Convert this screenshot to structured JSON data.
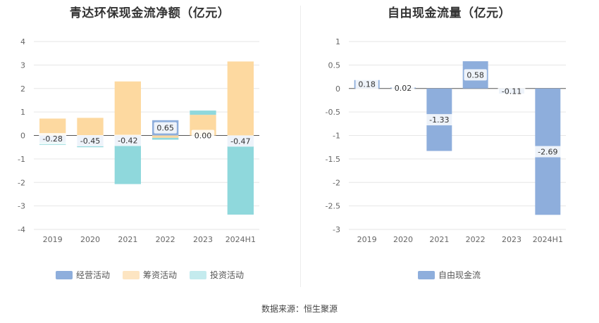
{
  "chart_data": [
    {
      "type": "bar",
      "stacked": true,
      "title": "青达环保现金流净额（亿元）",
      "categories": [
        "2019",
        "2020",
        "2021",
        "2022",
        "2023",
        "2024H1"
      ],
      "ylim": [
        -4,
        4
      ],
      "yticks": [
        4,
        3,
        2,
        1,
        0,
        -1,
        -2,
        -3,
        -4
      ],
      "grid": true,
      "legend_position": "bottom",
      "series": [
        {
          "name": "经营活动",
          "color": "#8eaedc",
          "values": [
            -0.28,
            -0.45,
            -0.42,
            0.65,
            0.0,
            -0.47
          ]
        },
        {
          "name": "筹资活动",
          "color": "#fdd9a0",
          "values": [
            0.72,
            0.75,
            2.3,
            -0.1,
            0.88,
            3.15
          ]
        },
        {
          "name": "投资活动",
          "color": "#8fd8dc",
          "values": [
            -0.12,
            -0.05,
            -1.65,
            -0.08,
            0.18,
            -2.9
          ]
        }
      ],
      "data_labels": [
        "-0.28",
        "-0.45",
        "-0.42",
        "0.65",
        "0.00",
        "-0.47"
      ]
    },
    {
      "type": "bar",
      "title": "自由现金流量（亿元）",
      "categories": [
        "2019",
        "2020",
        "2021",
        "2022",
        "2023",
        "2024H1"
      ],
      "ylim": [
        -3,
        1
      ],
      "yticks": [
        1,
        0.5,
        0,
        -0.5,
        -1,
        -1.5,
        -2,
        -2.5,
        -3
      ],
      "grid": true,
      "legend_position": "bottom",
      "series": [
        {
          "name": "自由现金流",
          "color": "#8eaedc",
          "values": [
            0.18,
            0.02,
            -1.33,
            0.58,
            -0.11,
            -2.69
          ]
        }
      ],
      "data_labels": [
        "0.18",
        "0.02",
        "-1.33",
        "0.58",
        "-0.11",
        "-2.69"
      ]
    }
  ],
  "footer": {
    "source": "数据来源：恒生聚源"
  }
}
